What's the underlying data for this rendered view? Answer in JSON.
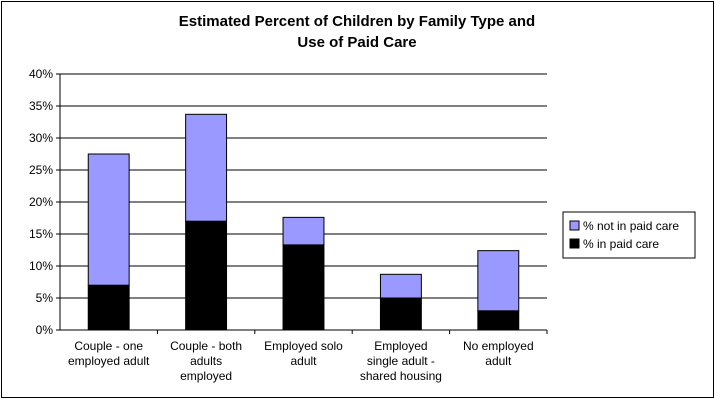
{
  "chart_data": {
    "type": "bar",
    "stacked": true,
    "title_lines": [
      "Estimated Percent of Children by Family Type and",
      "Use of Paid Care"
    ],
    "xlabel": "",
    "ylabel": "",
    "ylim": [
      0,
      0.4
    ],
    "y_ticks": [
      {
        "value": 0,
        "label": "0%"
      },
      {
        "value": 0.05,
        "label": "5%"
      },
      {
        "value": 0.1,
        "label": "10%"
      },
      {
        "value": 0.15,
        "label": "15%"
      },
      {
        "value": 0.2,
        "label": "20%"
      },
      {
        "value": 0.25,
        "label": "25%"
      },
      {
        "value": 0.3,
        "label": "30%"
      },
      {
        "value": 0.35,
        "label": "35%"
      },
      {
        "value": 0.4,
        "label": "40%"
      }
    ],
    "categories": [
      [
        "Couple - one",
        "employed adult"
      ],
      [
        "Couple - both",
        "adults",
        "employed"
      ],
      [
        "Employed solo",
        "adult"
      ],
      [
        "Employed",
        "single adult -",
        "shared housing"
      ],
      [
        "No employed",
        "adult"
      ]
    ],
    "series": [
      {
        "name": "% in paid care",
        "color": "#000000",
        "values": [
          0.07,
          0.17,
          0.133,
          0.05,
          0.03
        ]
      },
      {
        "name": "% not in paid care",
        "color": "#9999ff",
        "values": [
          0.205,
          0.167,
          0.043,
          0.037,
          0.094
        ]
      }
    ],
    "legend_order": [
      1,
      0
    ],
    "legend_position": "right",
    "grid": true,
    "plot_background": "#ffffff",
    "gridline_color": "#000000"
  }
}
